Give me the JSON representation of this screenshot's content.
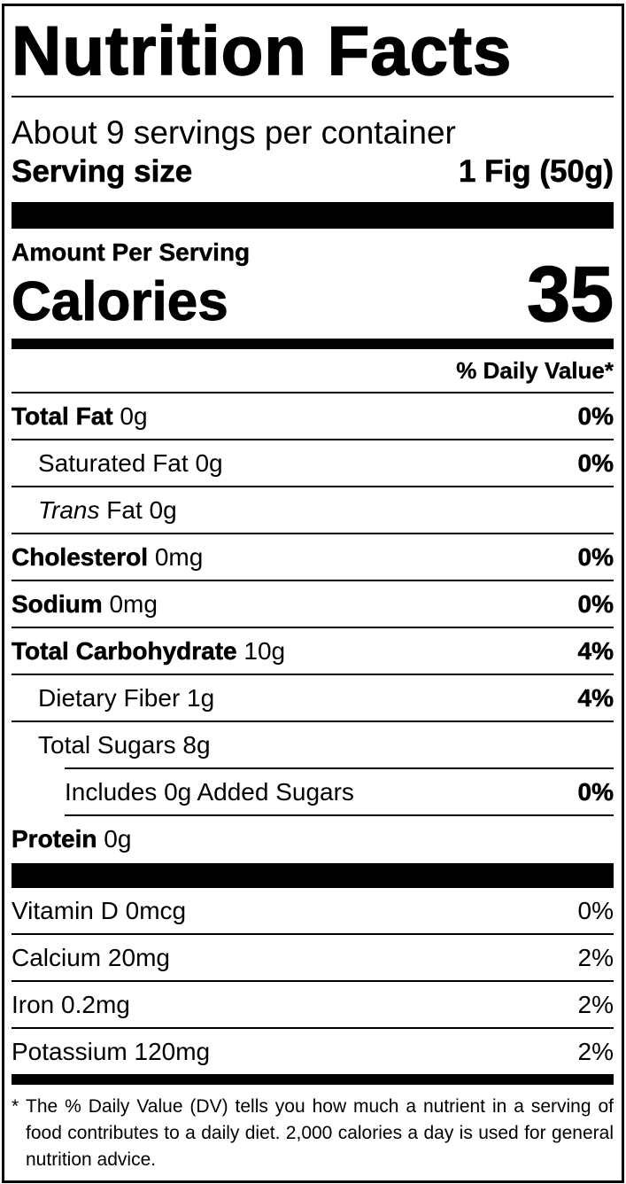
{
  "title": "Nutrition Facts",
  "servings": "About 9 servings per container",
  "serving_size": {
    "label": "Serving size",
    "value": "1 Fig (50g)"
  },
  "amount_per_serving": "Amount Per Serving",
  "calories": {
    "label": "Calories",
    "value": "35"
  },
  "daily_value_header": "% Daily Value*",
  "nutrients": [
    {
      "name": "Total Fat",
      "amount": "0g",
      "dv": "0%"
    },
    {
      "name": "Saturated Fat",
      "amount": "0g",
      "dv": "0%"
    },
    {
      "name_italic": "Trans",
      "name": "Fat",
      "amount": "0g"
    },
    {
      "name": "Cholesterol",
      "amount": "0mg",
      "dv": "0%"
    },
    {
      "name": "Sodium",
      "amount": "0mg",
      "dv": "0%"
    },
    {
      "name": "Total Carbohydrate",
      "amount": "10g",
      "dv": "4%"
    },
    {
      "name": "Dietary Fiber",
      "amount": "1g",
      "dv": "4%"
    },
    {
      "name": "Total Sugars",
      "amount": "8g"
    },
    {
      "name": "Includes 0g Added Sugars",
      "dv": "0%"
    },
    {
      "name": "Protein",
      "amount": "0g"
    }
  ],
  "vitamins": [
    {
      "name": "Vitamin D",
      "amount": "0mcg",
      "dv": "0%"
    },
    {
      "name": "Calcium",
      "amount": "20mg",
      "dv": "2%"
    },
    {
      "name": "Iron",
      "amount": "0.2mg",
      "dv": "2%"
    },
    {
      "name": "Potassium",
      "amount": "120mg",
      "dv": "2%"
    }
  ],
  "footnote": {
    "marker": "*",
    "text": "The % Daily Value (DV) tells you how much a nutrient in a serving of food contributes to a daily diet. 2,000 calories a day is used for general nutrition advice."
  }
}
